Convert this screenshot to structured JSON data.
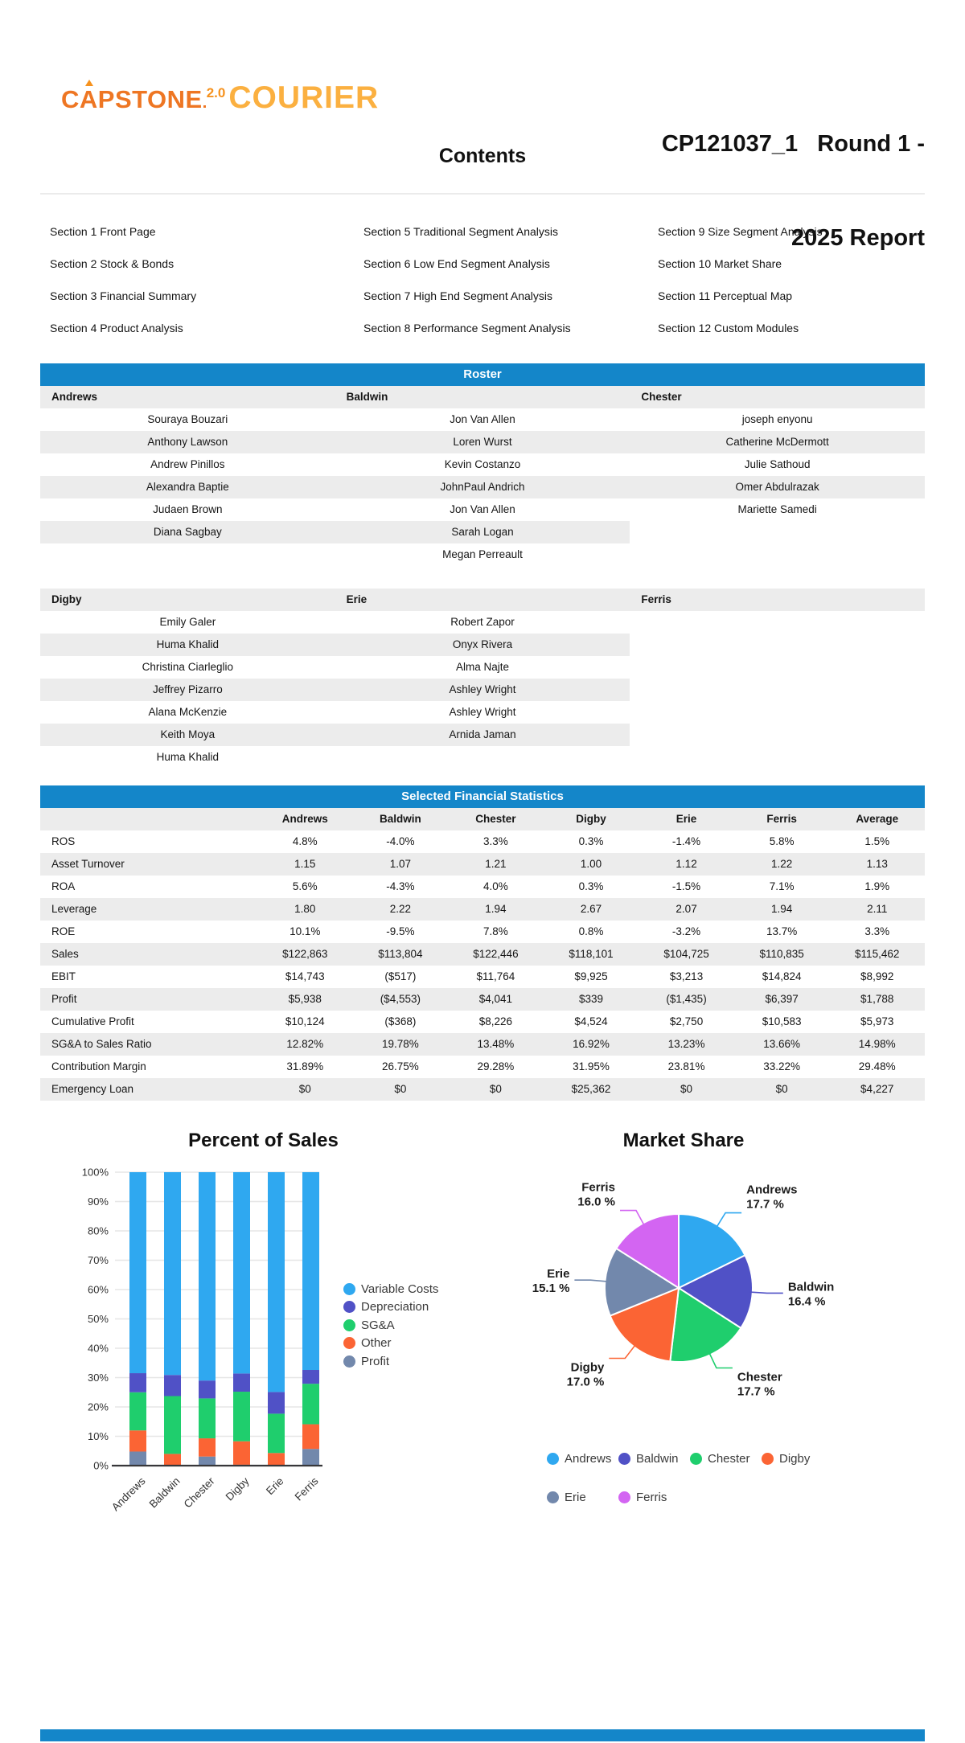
{
  "header": {
    "logo": {
      "capstone": "CAPSTONE",
      "version": "2.0",
      "courier": "COURIER"
    },
    "title_line1": "CP121037_1   Round 1 -",
    "title_line2": "2025 Report"
  },
  "contents": {
    "title": "Contents",
    "columns": [
      [
        "Section 1 Front Page",
        "Section 2 Stock & Bonds",
        "Section 3 Financial Summary",
        "Section 4 Product Analysis"
      ],
      [
        "Section 5 Traditional Segment Analysis",
        "Section 6 Low End Segment Analysis",
        "Section 7 High End Segment Analysis",
        "Section 8 Performance Segment Analysis"
      ],
      [
        "Section 9 Size Segment Analysis",
        "Section 10 Market Share",
        "Section 11 Perceptual Map",
        "Section 12 Custom Modules"
      ]
    ]
  },
  "roster": {
    "title": "Roster",
    "groups": [
      {
        "teams": [
          "Andrews",
          "Baldwin",
          "Chester"
        ],
        "members": [
          [
            "Souraya Bouzari",
            "Anthony Lawson",
            "Andrew Pinillos",
            "Alexandra Baptie",
            "Judaen Brown",
            "Diana Sagbay"
          ],
          [
            "Jon Van Allen",
            "Loren Wurst",
            "Kevin Costanzo",
            "JohnPaul Andrich",
            "Jon Van Allen",
            "Sarah Logan",
            "Megan Perreault"
          ],
          [
            "joseph enyonu",
            "Catherine McDermott",
            "Julie Sathoud",
            "Omer Abdulrazak",
            "Mariette Samedi"
          ]
        ]
      },
      {
        "teams": [
          "Digby",
          "Erie",
          "Ferris"
        ],
        "members": [
          [
            "Emily Galer",
            "Huma Khalid",
            "Christina Ciarleglio",
            "Jeffrey Pizarro",
            "Alana McKenzie",
            "Keith Moya",
            "Huma Khalid"
          ],
          [
            "Robert Zapor",
            "Onyx Rivera",
            "Alma Najte",
            "Ashley Wright",
            "Ashley Wright",
            "Arnida Jaman"
          ],
          []
        ]
      }
    ]
  },
  "financials": {
    "title": "Selected Financial Statistics",
    "companies": [
      "Andrews",
      "Baldwin",
      "Chester",
      "Digby",
      "Erie",
      "Ferris",
      "Average"
    ],
    "rows": [
      {
        "label": "ROS",
        "values": [
          "4.8%",
          "-4.0%",
          "3.3%",
          "0.3%",
          "-1.4%",
          "5.8%",
          "1.5%"
        ]
      },
      {
        "label": "Asset Turnover",
        "values": [
          "1.15",
          "1.07",
          "1.21",
          "1.00",
          "1.12",
          "1.22",
          "1.13"
        ]
      },
      {
        "label": "ROA",
        "values": [
          "5.6%",
          "-4.3%",
          "4.0%",
          "0.3%",
          "-1.5%",
          "7.1%",
          "1.9%"
        ]
      },
      {
        "label": "Leverage",
        "values": [
          "1.80",
          "2.22",
          "1.94",
          "2.67",
          "2.07",
          "1.94",
          "2.11"
        ]
      },
      {
        "label": "ROE",
        "values": [
          "10.1%",
          "-9.5%",
          "7.8%",
          "0.8%",
          "-3.2%",
          "13.7%",
          "3.3%"
        ]
      },
      {
        "label": "Sales",
        "values": [
          "$122,863",
          "$113,804",
          "$122,446",
          "$118,101",
          "$104,725",
          "$110,835",
          "$115,462"
        ]
      },
      {
        "label": "EBIT",
        "values": [
          "$14,743",
          "($517)",
          "$11,764",
          "$9,925",
          "$3,213",
          "$14,824",
          "$8,992"
        ]
      },
      {
        "label": "Profit",
        "values": [
          "$5,938",
          "($4,553)",
          "$4,041",
          "$339",
          "($1,435)",
          "$6,397",
          "$1,788"
        ]
      },
      {
        "label": "Cumulative Profit",
        "values": [
          "$10,124",
          "($368)",
          "$8,226",
          "$4,524",
          "$2,750",
          "$10,583",
          "$5,973"
        ]
      },
      {
        "label": "SG&A to Sales Ratio",
        "values": [
          "12.82%",
          "19.78%",
          "13.48%",
          "16.92%",
          "13.23%",
          "13.66%",
          "14.98%"
        ]
      },
      {
        "label": "Contribution Margin",
        "values": [
          "31.89%",
          "26.75%",
          "29.28%",
          "31.95%",
          "23.81%",
          "33.22%",
          "29.48%"
        ]
      },
      {
        "label": "Emergency Loan",
        "values": [
          "$0",
          "$0",
          "$0",
          "$25,362",
          "$0",
          "$0",
          "$4,227"
        ]
      }
    ]
  },
  "chart_data": [
    {
      "type": "bar",
      "stacked": true,
      "title": "Percent of Sales",
      "categories": [
        "Andrews",
        "Baldwin",
        "Chester",
        "Digby",
        "Erie",
        "Ferris"
      ],
      "series": [
        {
          "name": "Profit",
          "color": "#7288AC",
          "values": [
            4.8,
            0,
            3.1,
            0.3,
            0,
            5.7
          ]
        },
        {
          "name": "Other",
          "color": "#FB6434",
          "values": [
            7.2,
            4.0,
            6.2,
            8.0,
            4.3,
            8.4
          ]
        },
        {
          "name": "SG&A",
          "color": "#1FCE6D",
          "values": [
            13.0,
            19.7,
            13.6,
            16.9,
            13.4,
            13.8
          ]
        },
        {
          "name": "Depreciation",
          "color": "#5051C6",
          "values": [
            6.5,
            7.2,
            6.1,
            6.2,
            7.4,
            4.7
          ]
        },
        {
          "name": "Variable Costs",
          "color": "#2FA8F0",
          "values": [
            68.5,
            69.1,
            71.0,
            68.6,
            74.9,
            67.4
          ]
        }
      ],
      "legend_order": [
        "Variable Costs",
        "Depreciation",
        "SG&A",
        "Other",
        "Profit"
      ],
      "ylim": [
        0,
        100
      ],
      "ytick_step": 10,
      "ytick_suffix": "%",
      "grid": true,
      "legend_position": "right"
    },
    {
      "type": "pie",
      "title": "Market Share",
      "slices": [
        {
          "label": "Andrews",
          "value": 17.7,
          "color": "#2FA8F0"
        },
        {
          "label": "Baldwin",
          "value": 16.4,
          "color": "#5051C6"
        },
        {
          "label": "Chester",
          "value": 17.7,
          "color": "#1FCE6D"
        },
        {
          "label": "Digby",
          "value": 17.0,
          "color": "#FB6434"
        },
        {
          "label": "Erie",
          "value": 15.1,
          "color": "#7288AC"
        },
        {
          "label": "Ferris",
          "value": 16.0,
          "color": "#D365F2"
        }
      ],
      "value_suffix": " %",
      "legend_rows": [
        [
          "Andrews",
          "Baldwin",
          "Chester",
          "Digby"
        ],
        [
          "Erie",
          "Ferris"
        ]
      ],
      "legend_position": "bottom"
    }
  ],
  "colors": {
    "header_blue": "#1486C9",
    "stripe_gray": "#ECECEC",
    "logo_orange": "#EE7623",
    "logo_amber": "#FBB040"
  }
}
